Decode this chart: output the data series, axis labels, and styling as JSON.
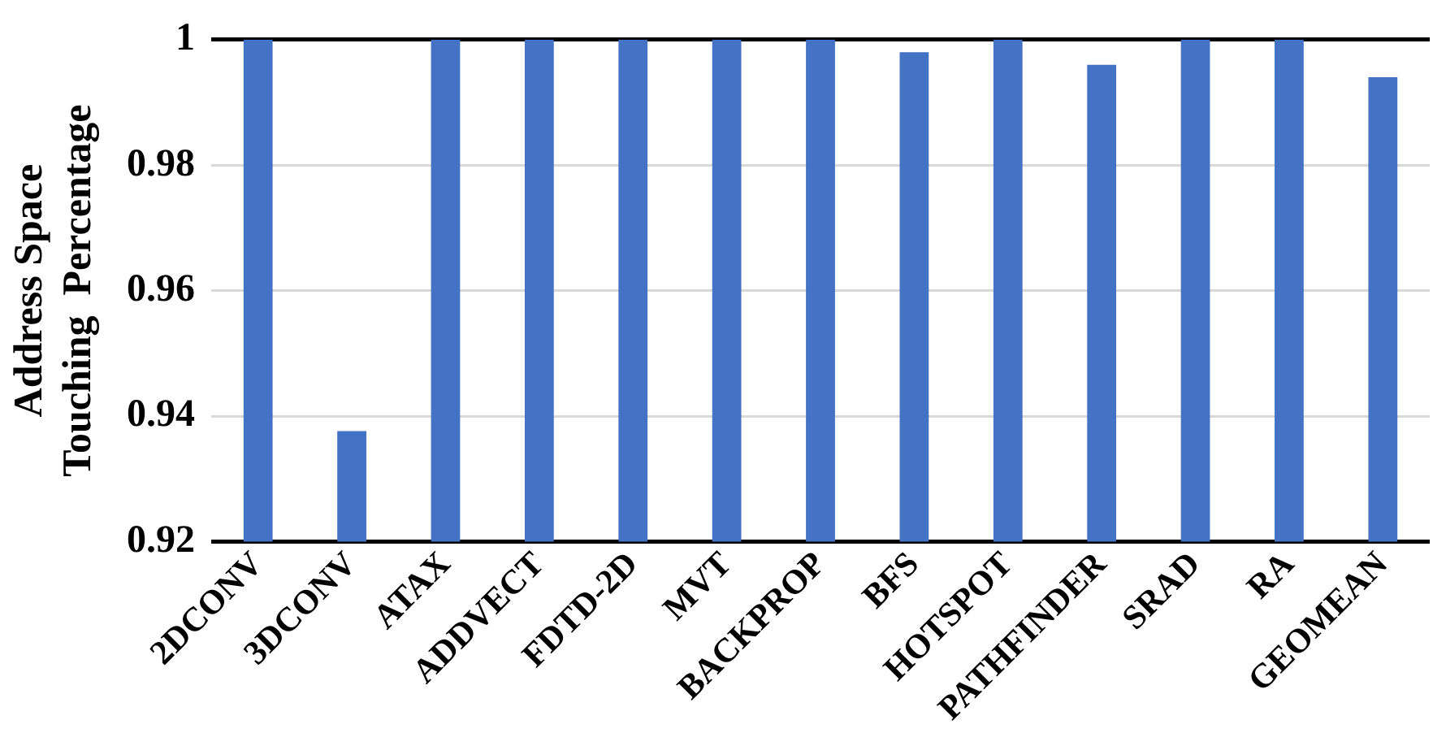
{
  "chart_data": {
    "type": "bar",
    "ylabel": "Address Space\nTouching  Percentage",
    "categories": [
      "2DCONV",
      "3DCONV",
      "ATAX",
      "ADDVECT",
      "FDTD-2D",
      "MVT",
      "BACKPROP",
      "BFS",
      "HOTSPOT",
      "PATHFINDER",
      "SRAD",
      "RA",
      "GEOMEAN"
    ],
    "values": [
      1,
      0.9376,
      1,
      1,
      1,
      1,
      1,
      0.998,
      1,
      0.996,
      1,
      1,
      0.994
    ],
    "color": "#4472c4",
    "ylim": [
      0.92,
      1
    ],
    "yticks": [
      0.92,
      0.94,
      0.96,
      0.98,
      1
    ],
    "grid": "y",
    "legend": false
  }
}
